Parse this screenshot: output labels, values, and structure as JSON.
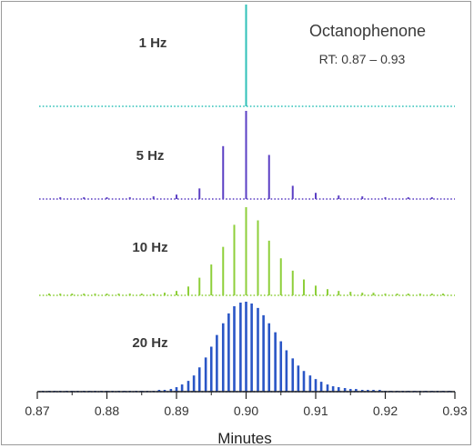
{
  "chart_data": {
    "type": "bar",
    "title": "Octanophenone",
    "subtitle": "RT: 0.87 – 0.93",
    "xlabel": "Minutes",
    "ylabel": "",
    "xlim": [
      0.87,
      0.93
    ],
    "x_ticks": [
      "0.87",
      "0.88",
      "0.89",
      "0.90",
      "0.91",
      "0.92",
      "0.93"
    ],
    "x_tick_values": [
      0.87,
      0.88,
      0.89,
      0.9,
      0.91,
      0.92,
      0.93
    ],
    "grid": false,
    "legend": "none",
    "series": [
      {
        "name": "1 Hz",
        "color": "#2fc1b8",
        "x": [
          0.9
        ],
        "values": [
          1.0
        ]
      },
      {
        "name": "5 Hz",
        "color": "#5b3fc4",
        "x": [
          0.8733,
          0.8767,
          0.88,
          0.8833,
          0.8867,
          0.89,
          0.8933,
          0.8967,
          0.9,
          0.9033,
          0.9067,
          0.91,
          0.9133,
          0.9167,
          0.92,
          0.9233,
          0.9267
        ],
        "values": [
          0.02,
          0.02,
          0.02,
          0.02,
          0.03,
          0.05,
          0.12,
          0.6,
          1.0,
          0.5,
          0.15,
          0.07,
          0.04,
          0.03,
          0.02,
          0.02,
          0.02
        ]
      },
      {
        "name": "10 Hz",
        "color": "#8ecf3a",
        "x": [
          0.8717,
          0.8733,
          0.875,
          0.8767,
          0.8783,
          0.88,
          0.8817,
          0.8833,
          0.885,
          0.8867,
          0.8883,
          0.89,
          0.8917,
          0.8933,
          0.895,
          0.8967,
          0.8983,
          0.9,
          0.9017,
          0.9033,
          0.905,
          0.9067,
          0.9083,
          0.91,
          0.9117,
          0.9133,
          0.915,
          0.9167,
          0.9183,
          0.92,
          0.9217,
          0.9233,
          0.925,
          0.9267,
          0.9283
        ],
        "values": [
          0.02,
          0.02,
          0.02,
          0.02,
          0.02,
          0.02,
          0.02,
          0.02,
          0.02,
          0.02,
          0.03,
          0.05,
          0.1,
          0.2,
          0.35,
          0.55,
          0.8,
          1.0,
          0.85,
          0.62,
          0.42,
          0.28,
          0.18,
          0.11,
          0.07,
          0.05,
          0.04,
          0.03,
          0.03,
          0.02,
          0.02,
          0.02,
          0.02,
          0.02,
          0.02
        ]
      },
      {
        "name": "20 Hz",
        "color": "#2a56c6",
        "x": [
          0.8708,
          0.8717,
          0.8725,
          0.8733,
          0.8742,
          0.875,
          0.8758,
          0.8767,
          0.8775,
          0.8783,
          0.8792,
          0.88,
          0.8808,
          0.8817,
          0.8825,
          0.8833,
          0.8842,
          0.885,
          0.8858,
          0.8867,
          0.8875,
          0.8883,
          0.8892,
          0.89,
          0.8908,
          0.8917,
          0.8925,
          0.8933,
          0.8942,
          0.895,
          0.8958,
          0.8967,
          0.8975,
          0.8983,
          0.8992,
          0.9,
          0.9008,
          0.9017,
          0.9025,
          0.9033,
          0.9042,
          0.905,
          0.9058,
          0.9067,
          0.9075,
          0.9083,
          0.9092,
          0.91,
          0.9108,
          0.9117,
          0.9125,
          0.9133,
          0.9142,
          0.915,
          0.9158,
          0.9167,
          0.9175,
          0.9183,
          0.9192,
          0.92,
          0.9208,
          0.9217,
          0.9225,
          0.9233,
          0.9242,
          0.925,
          0.9258,
          0.9267,
          0.9275,
          0.9283,
          0.9292
        ],
        "values": [
          0.01,
          0.01,
          0.01,
          0.01,
          0.01,
          0.01,
          0.01,
          0.01,
          0.01,
          0.01,
          0.01,
          0.01,
          0.01,
          0.01,
          0.01,
          0.01,
          0.01,
          0.01,
          0.01,
          0.01,
          0.02,
          0.02,
          0.03,
          0.05,
          0.08,
          0.12,
          0.18,
          0.27,
          0.38,
          0.5,
          0.63,
          0.76,
          0.87,
          0.95,
          0.99,
          1.0,
          0.98,
          0.93,
          0.85,
          0.76,
          0.66,
          0.56,
          0.46,
          0.37,
          0.29,
          0.23,
          0.18,
          0.14,
          0.11,
          0.08,
          0.06,
          0.05,
          0.04,
          0.03,
          0.03,
          0.02,
          0.02,
          0.02,
          0.02,
          0.01,
          0.01,
          0.01,
          0.01,
          0.01,
          0.01,
          0.01,
          0.01,
          0.01,
          0.01,
          0.01,
          0.01
        ]
      }
    ]
  }
}
